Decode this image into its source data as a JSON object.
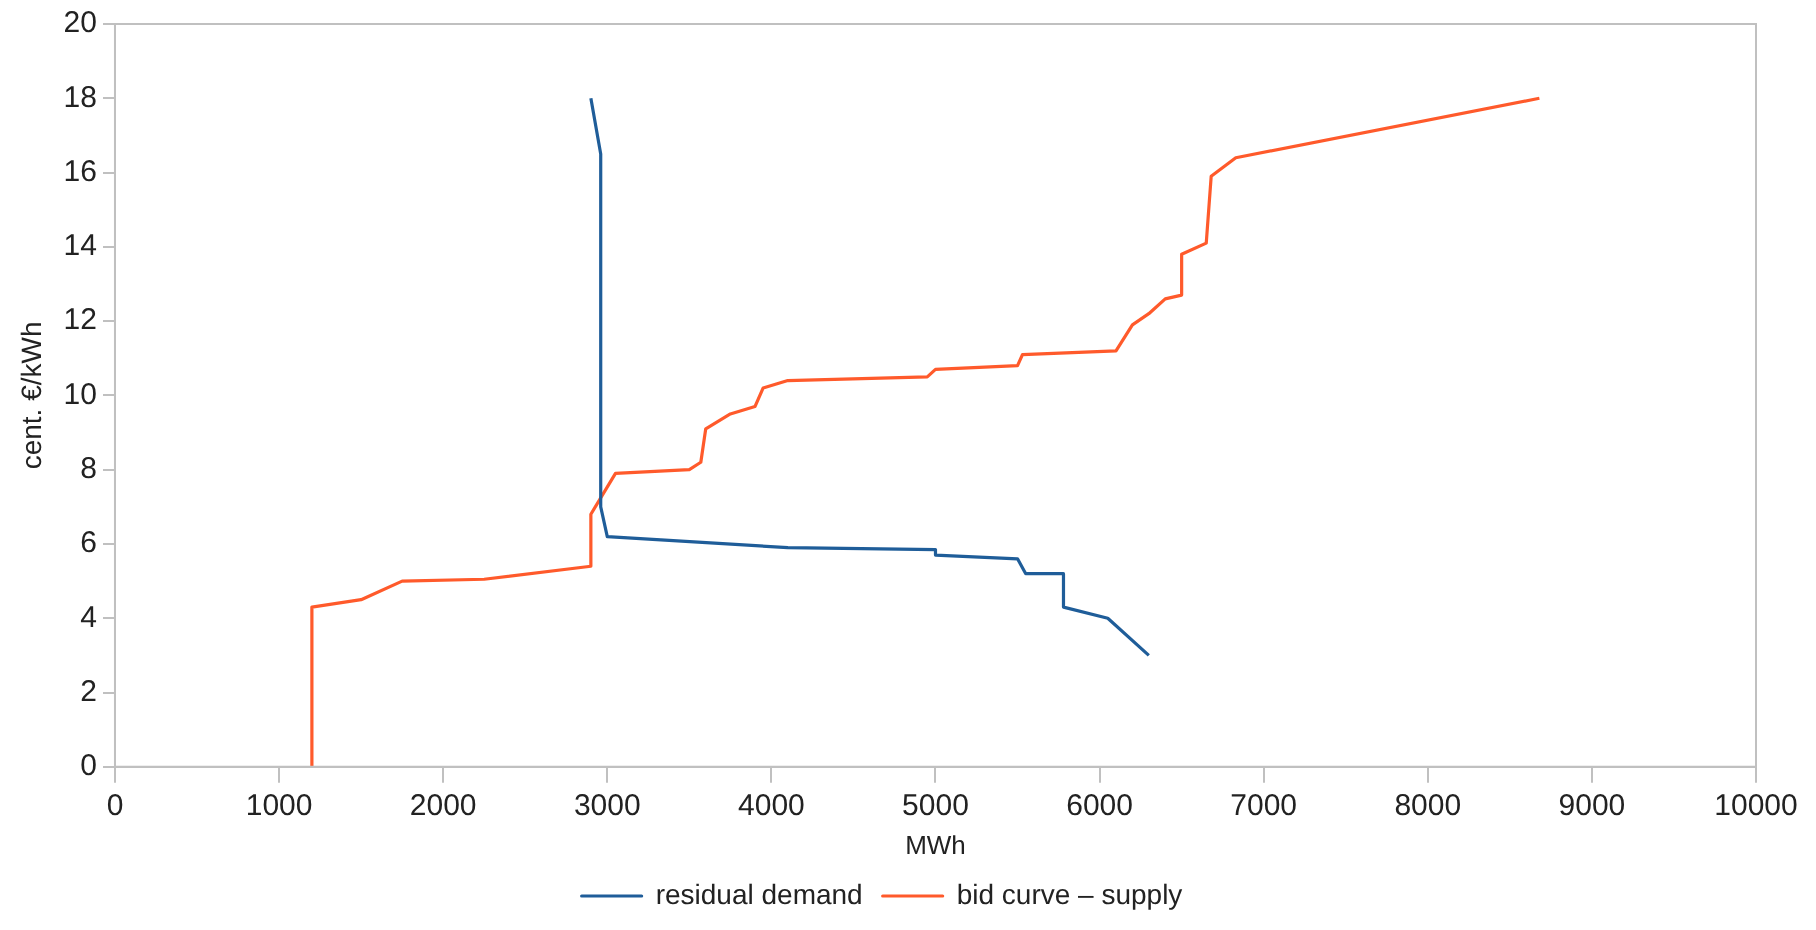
{
  "chart_data": {
    "type": "line",
    "xlabel": "MWh",
    "ylabel": "cent. €/kWh",
    "xlim": [
      0,
      10000
    ],
    "xticks": [
      0,
      1000,
      2000,
      3000,
      4000,
      5000,
      6000,
      7000,
      8000,
      9000,
      10000
    ],
    "ylim": [
      0,
      20
    ],
    "yticks": [
      0,
      2,
      4,
      6,
      8,
      10,
      12,
      14,
      16,
      18,
      20
    ],
    "grid": false,
    "legend": "bottom",
    "marker": "none",
    "line_style": "solid",
    "series": [
      {
        "name": "residual demand",
        "color": "#1f5d99",
        "x": [
          2900,
          2960,
          2960,
          3000,
          4100,
          5000,
          5000,
          5500,
          5550,
          5780,
          5780,
          6050,
          6300
        ],
        "values": [
          18,
          16.5,
          7,
          6.2,
          5.9,
          5.85,
          5.7,
          5.6,
          5.2,
          5.2,
          4.3,
          4.0,
          3.0
        ]
      },
      {
        "name": "bid curve – supply",
        "color": "#ff5a2b",
        "x": [
          1200,
          1200,
          1500,
          1750,
          2250,
          2900,
          2900,
          3050,
          3500,
          3570,
          3600,
          3750,
          3900,
          3950,
          4100,
          4950,
          5000,
          5500,
          5530,
          6100,
          6200,
          6300,
          6400,
          6500,
          6500,
          6650,
          6680,
          6830,
          8680
        ],
        "values": [
          0,
          4.3,
          4.5,
          5.0,
          5.05,
          5.4,
          6.8,
          7.9,
          8.0,
          8.2,
          9.1,
          9.5,
          9.7,
          10.2,
          10.4,
          10.5,
          10.7,
          10.8,
          11.1,
          11.2,
          11.9,
          12.2,
          12.6,
          12.7,
          13.8,
          14.1,
          15.9,
          16.4,
          18.0
        ]
      }
    ]
  }
}
